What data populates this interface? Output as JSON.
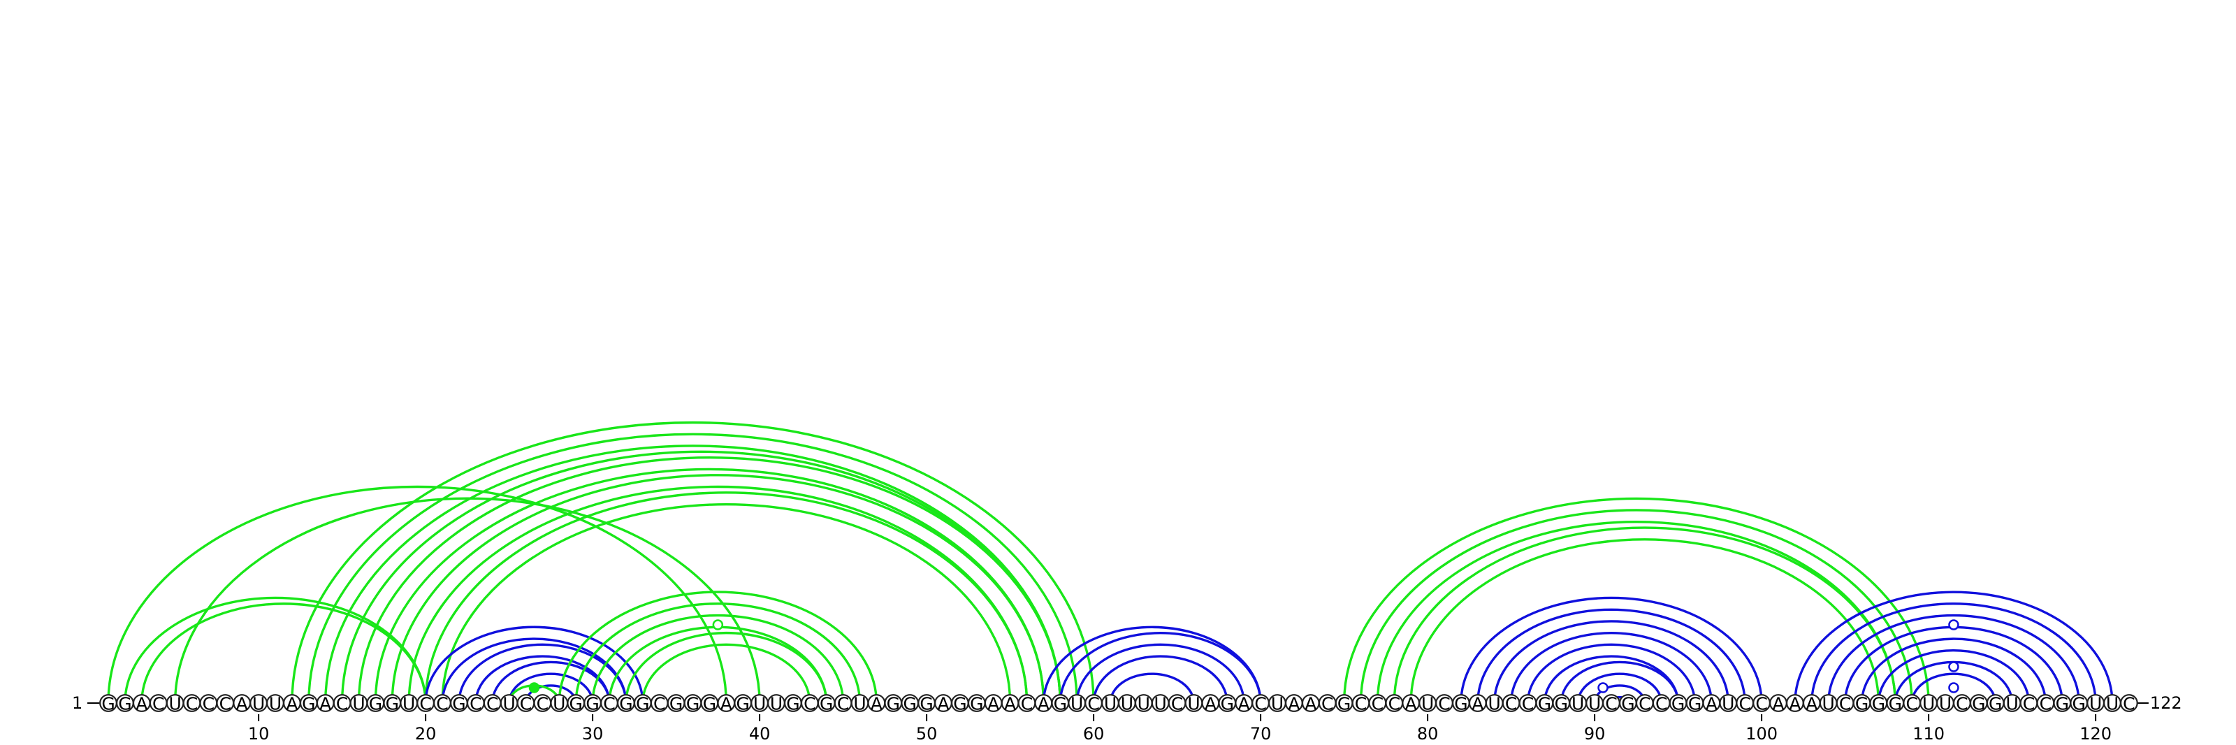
{
  "sequence": "GGACUCCCAUUAGACUGGUCCGCCUCCUGGCGGCGGGAGUUGCGCUAGGGAGGAACAGUCUUUUCUAGACUAACGCCCAUCGAUCCGGUUCGCCGGAUCCAAAUCGGGCUUCGGUCCGGUUC",
  "start_label": "1",
  "end_label": "122",
  "ticks": [
    10,
    20,
    30,
    40,
    50,
    60,
    70,
    80,
    90,
    100,
    110,
    120
  ],
  "colors": {
    "blue": "#1010dd",
    "green": "#19e619"
  },
  "arc_groups": [
    {
      "color": "green",
      "pairs": [
        [
          2,
          20
        ],
        [
          3,
          20
        ]
      ]
    },
    {
      "color": "green",
      "pairs": [
        [
          1,
          38
        ],
        [
          5,
          40
        ]
      ]
    },
    {
      "color": "green",
      "pairs": [
        [
          12,
          60
        ],
        [
          13,
          59
        ],
        [
          14,
          58
        ],
        [
          15,
          58
        ],
        [
          16,
          58
        ],
        [
          17,
          57
        ],
        [
          18,
          57
        ],
        [
          19,
          56
        ],
        [
          20,
          56
        ],
        [
          21,
          55
        ]
      ]
    },
    {
      "color": "blue",
      "pairs": [
        [
          20,
          33
        ],
        [
          21,
          32
        ],
        [
          22,
          32
        ],
        [
          23,
          31
        ],
        [
          24,
          31
        ],
        [
          25,
          30
        ],
        [
          26,
          29
        ]
      ]
    },
    {
      "color": "green",
      "pairs": [
        [
          25,
          28
        ]
      ]
    },
    {
      "color": "green",
      "pairs": [
        [
          28,
          47
        ],
        [
          29,
          46
        ],
        [
          30,
          45
        ],
        [
          31,
          44
        ],
        [
          32,
          44
        ],
        [
          33,
          43
        ]
      ]
    },
    {
      "color": "blue",
      "pairs": [
        [
          57,
          70
        ],
        [
          58,
          70
        ],
        [
          59,
          69
        ],
        [
          60,
          68
        ],
        [
          61,
          66
        ]
      ]
    },
    {
      "color": "green",
      "pairs": [
        [
          75,
          110
        ],
        [
          76,
          109
        ],
        [
          77,
          108
        ],
        [
          78,
          108
        ],
        [
          79,
          107
        ]
      ]
    },
    {
      "color": "blue",
      "pairs": [
        [
          82,
          100
        ],
        [
          83,
          99
        ],
        [
          84,
          98
        ],
        [
          85,
          97
        ],
        [
          86,
          96
        ],
        [
          87,
          95
        ],
        [
          88,
          95
        ],
        [
          89,
          94
        ],
        [
          90,
          93
        ],
        [
          91,
          92
        ]
      ]
    },
    {
      "color": "blue",
      "pairs": [
        [
          102,
          121
        ],
        [
          103,
          120
        ],
        [
          104,
          119
        ],
        [
          105,
          118
        ],
        [
          106,
          117
        ],
        [
          107,
          116
        ],
        [
          108,
          115
        ],
        [
          109,
          114
        ]
      ]
    }
  ],
  "markers": [
    {
      "x": 26.5,
      "height": 22,
      "color": "green",
      "filled": true
    },
    {
      "x": 37.5,
      "height": 112,
      "color": "green",
      "filled": false
    },
    {
      "x": 90.5,
      "height": 22,
      "color": "blue",
      "filled": false
    },
    {
      "x": 111.5,
      "height": 22,
      "color": "blue",
      "filled": false
    },
    {
      "x": 111.5,
      "height": 52,
      "color": "blue",
      "filled": false
    },
    {
      "x": 111.5,
      "height": 112,
      "color": "blue",
      "filled": false
    }
  ]
}
